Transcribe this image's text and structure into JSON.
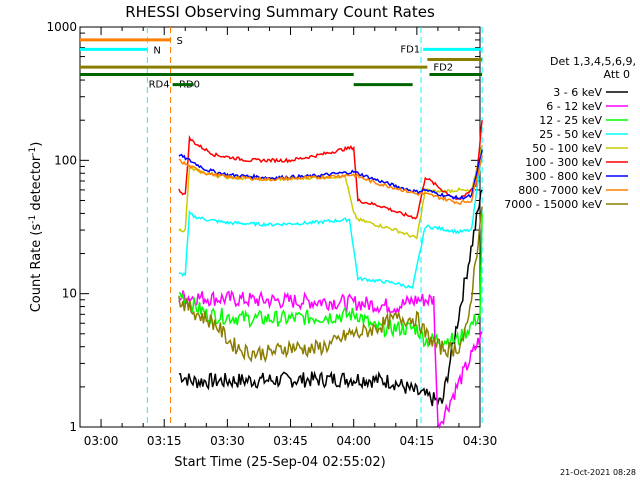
{
  "chart_data": {
    "type": "line",
    "title": "RHESSI Observing Summary Count Rates",
    "xlabel": "Start Time (25-Sep-04 02:55:02)",
    "ylabel_main": "Count Rate (s",
    "ylabel_sup1": "-1",
    "ylabel_mid": " detector",
    "ylabel_sup2": "-1",
    "ylabel_end": ")",
    "yscale": "log",
    "ylim": [
      1,
      1000
    ],
    "xlim_min": [
      0,
      95
    ],
    "x_ticks": [
      {
        "min": 5,
        "label": "03:00"
      },
      {
        "min": 20,
        "label": "03:15"
      },
      {
        "min": 35,
        "label": "03:30"
      },
      {
        "min": 50,
        "label": "03:45"
      },
      {
        "min": 65,
        "label": "04:00"
      },
      {
        "min": 80,
        "label": "04:15"
      },
      {
        "min": 95,
        "label": "04:30"
      }
    ],
    "y_ticks": [
      {
        "v": 1,
        "label": "1"
      },
      {
        "v": 10,
        "label": "10"
      },
      {
        "v": 100,
        "label": "100"
      },
      {
        "v": 1000,
        "label": "1000"
      }
    ],
    "legend_title": "Det 1,3,4,5,6,9,",
    "legend_title2": "Att 0",
    "series": [
      {
        "name": "3 - 6 keV",
        "color": "#000000",
        "x": [
          23.5,
          26.5,
          66,
          74,
          86,
          95.5
        ],
        "y": [
          2.5,
          2.2,
          2.3,
          2.2,
          1.5,
          60
        ]
      },
      {
        "name": "6 - 12 keV",
        "color": "#ff00ff",
        "x": [
          23.5,
          30,
          40,
          50,
          60,
          66,
          75,
          80,
          84,
          85,
          95.5
        ],
        "y": [
          9.5,
          9.3,
          9.0,
          8.8,
          8.7,
          8.5,
          8.0,
          9.0,
          9.0,
          1.0,
          5
        ]
      },
      {
        "name": "12 - 25 keV",
        "color": "#00ff00",
        "x": [
          23.5,
          30,
          40,
          50,
          60,
          66,
          70,
          80,
          82,
          90,
          95,
          95.5
        ],
        "y": [
          10,
          7,
          6.5,
          6.5,
          6.8,
          7,
          5.5,
          5.5,
          4.5,
          4.5,
          7,
          40
        ]
      },
      {
        "name": "25 - 50 keV",
        "color": "#00ffff",
        "x": [
          23.5,
          25,
          26,
          27,
          30,
          35,
          45,
          55,
          64,
          66,
          75,
          79,
          82,
          85,
          90,
          93,
          95.5
        ],
        "y": [
          14,
          14,
          40,
          38,
          36,
          34,
          33,
          34,
          36,
          13,
          12,
          11,
          32,
          31,
          29,
          30,
          120
        ]
      },
      {
        "name": "50 - 100 keV",
        "color": "#cccc00",
        "x": [
          23.5,
          25,
          26,
          27,
          30,
          35,
          45,
          55,
          63,
          65,
          66,
          75,
          80,
          82,
          85,
          90,
          93,
          95.5
        ],
        "y": [
          30,
          30,
          90,
          85,
          80,
          75,
          72,
          74,
          76,
          40,
          36,
          30,
          26,
          60,
          58,
          60,
          58,
          130
        ]
      },
      {
        "name": "100 - 300 keV",
        "color": "#ff0000",
        "x": [
          23.5,
          25,
          26,
          28,
          32,
          40,
          50,
          57,
          62,
          65,
          66,
          72,
          76,
          80,
          82,
          86,
          90,
          94,
          95.5
        ],
        "y": [
          60,
          55,
          145,
          130,
          110,
          100,
          100,
          110,
          120,
          125,
          50,
          45,
          40,
          37,
          75,
          60,
          50,
          65,
          200
        ]
      },
      {
        "name": "300 - 800 keV",
        "color": "#0000ff",
        "x": [
          23.5,
          26,
          30,
          35,
          45,
          55,
          65,
          70,
          75,
          80,
          82,
          86,
          90,
          93,
          95.5
        ],
        "y": [
          110,
          100,
          85,
          78,
          74,
          76,
          82,
          72,
          64,
          58,
          60,
          55,
          52,
          54,
          120
        ]
      },
      {
        "name": "800 - 7000 keV",
        "color": "#ff8000",
        "x": [
          23.5,
          26,
          30,
          35,
          45,
          55,
          65,
          70,
          75,
          80,
          82,
          86,
          90,
          93,
          95.5
        ],
        "y": [
          100,
          90,
          80,
          75,
          72,
          74,
          78,
          68,
          62,
          56,
          56,
          52,
          48,
          50,
          110
        ]
      },
      {
        "name": "7000 - 15000 keV",
        "color": "#8b7d00",
        "x": [
          23.5,
          28,
          32,
          36,
          40,
          45,
          50,
          55,
          60,
          64,
          66,
          70,
          75,
          80,
          82,
          85,
          88,
          90,
          92,
          95.5
        ],
        "y": [
          9,
          7,
          6,
          4.2,
          3.6,
          3.6,
          4,
          3.8,
          4.2,
          5,
          5,
          5.5,
          6.5,
          6.5,
          5,
          4,
          3.8,
          4,
          5.5,
          45
        ]
      }
    ],
    "segments": [
      {
        "label": "S",
        "color": "#ff8000",
        "x0": 0,
        "x1": 21.5,
        "y": 800,
        "label_side": "right"
      },
      {
        "label": "N",
        "color": "#00ffff",
        "x0": 0,
        "x1": 16,
        "y": 680,
        "label_side": "right"
      },
      {
        "label": "FD1",
        "color": "#00ffff",
        "x0": 81.5,
        "x1": 95.5,
        "y": 680,
        "label_side": "left"
      },
      {
        "label": "FD2",
        "color": "#8b7d00",
        "x0": 82.5,
        "x1": 95.5,
        "y": 570,
        "label_side": "below-left"
      },
      {
        "label": "",
        "color": "#8b7d00",
        "x0": 0,
        "x1": 82.5,
        "y": 500,
        "label_side": "none"
      },
      {
        "label": "RD0",
        "color": "#006400",
        "x0": 0,
        "x1": 65,
        "y": 440,
        "label_side": "below-mid"
      },
      {
        "label": "RD4",
        "color": "#006400",
        "x0": 22,
        "x1": 27,
        "y": 370,
        "label_side": "left"
      },
      {
        "label": "",
        "color": "#006400",
        "x0": 65,
        "x1": 79,
        "y": 370,
        "label_side": "none"
      },
      {
        "label": "",
        "color": "#006400",
        "x0": 83,
        "x1": 95.5,
        "y": 440,
        "label_side": "none"
      }
    ],
    "vlines": [
      {
        "x": 16,
        "color": "#00ffff"
      },
      {
        "x": 21.5,
        "color": "#ff8000"
      },
      {
        "x": 81,
        "color": "#00ffff"
      },
      {
        "x": 95.5,
        "color": "#00ffff"
      }
    ],
    "grid": false,
    "legend_position": "right",
    "footer": "21-Oct-2021 08:28"
  }
}
